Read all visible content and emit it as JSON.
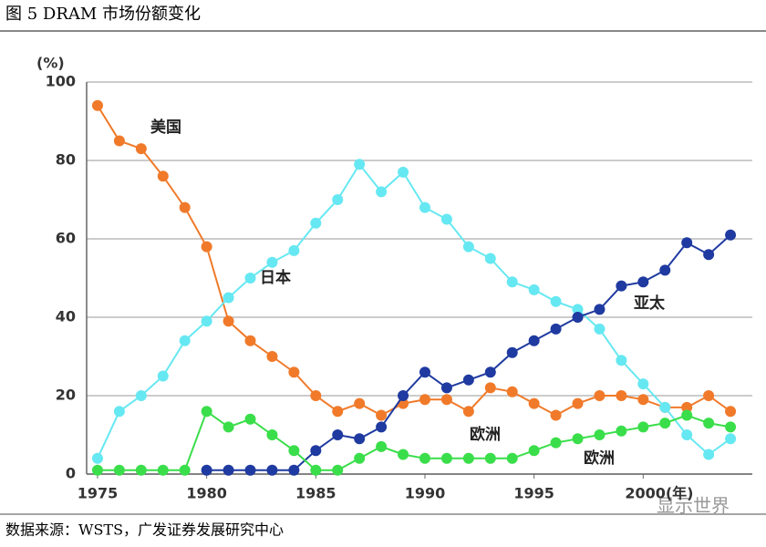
{
  "chart_data": {
    "type": "line",
    "title": "图 5 DRAM 市场份额变化",
    "source": "数据来源：WSTS，广发证券发展研究中心",
    "watermark": "显示世界",
    "ylabel": "(%)",
    "x": [
      1975,
      1976,
      1977,
      1978,
      1979,
      1980,
      1981,
      1982,
      1983,
      1984,
      1985,
      1986,
      1987,
      1988,
      1989,
      1990,
      1991,
      1992,
      1993,
      1994,
      1995,
      1996,
      1997,
      1998,
      1999,
      2000,
      2001,
      2002,
      2003,
      2004
    ],
    "series": [
      {
        "name": "美国",
        "color": "#f07a2a",
        "values": [
          94,
          85,
          83,
          76,
          68,
          58,
          39,
          34,
          30,
          26,
          20,
          16,
          18,
          15,
          18,
          19,
          19,
          16,
          22,
          21,
          18,
          15,
          18,
          20,
          20,
          19,
          17,
          17,
          20,
          16
        ]
      },
      {
        "name": "日本",
        "color": "#66e8f2",
        "values": [
          4,
          16,
          20,
          25,
          34,
          39,
          45,
          50,
          54,
          57,
          64,
          70,
          79,
          72,
          77,
          68,
          65,
          58,
          55,
          49,
          47,
          44,
          42,
          37,
          29,
          23,
          17,
          10,
          5,
          9
        ]
      },
      {
        "name": "亚太",
        "color": "#1f3aa0",
        "values": [
          null,
          null,
          null,
          null,
          null,
          1,
          1,
          1,
          1,
          1,
          6,
          10,
          9,
          12,
          20,
          26,
          22,
          24,
          26,
          31,
          34,
          37,
          40,
          42,
          48,
          49,
          52,
          59,
          56,
          61
        ]
      },
      {
        "name": "欧洲",
        "color": "#3ade4a",
        "values": [
          1,
          1,
          1,
          1,
          1,
          16,
          12,
          14,
          10,
          6,
          1,
          1,
          4,
          7,
          5,
          4,
          4,
          4,
          4,
          4,
          6,
          8,
          9,
          10,
          11,
          12,
          13,
          15,
          13,
          12
        ]
      }
    ],
    "annotations": [
      "欧洲"
    ],
    "xlim": [
      1974.5,
      2005
    ],
    "ylim": [
      0,
      100
    ],
    "xticks": [
      1975,
      1980,
      1985,
      1990,
      1995,
      {
        "value": 2000,
        "label": "2000(年)"
      }
    ],
    "yticks": [
      0,
      20,
      40,
      60,
      80,
      100
    ],
    "grid": true
  }
}
